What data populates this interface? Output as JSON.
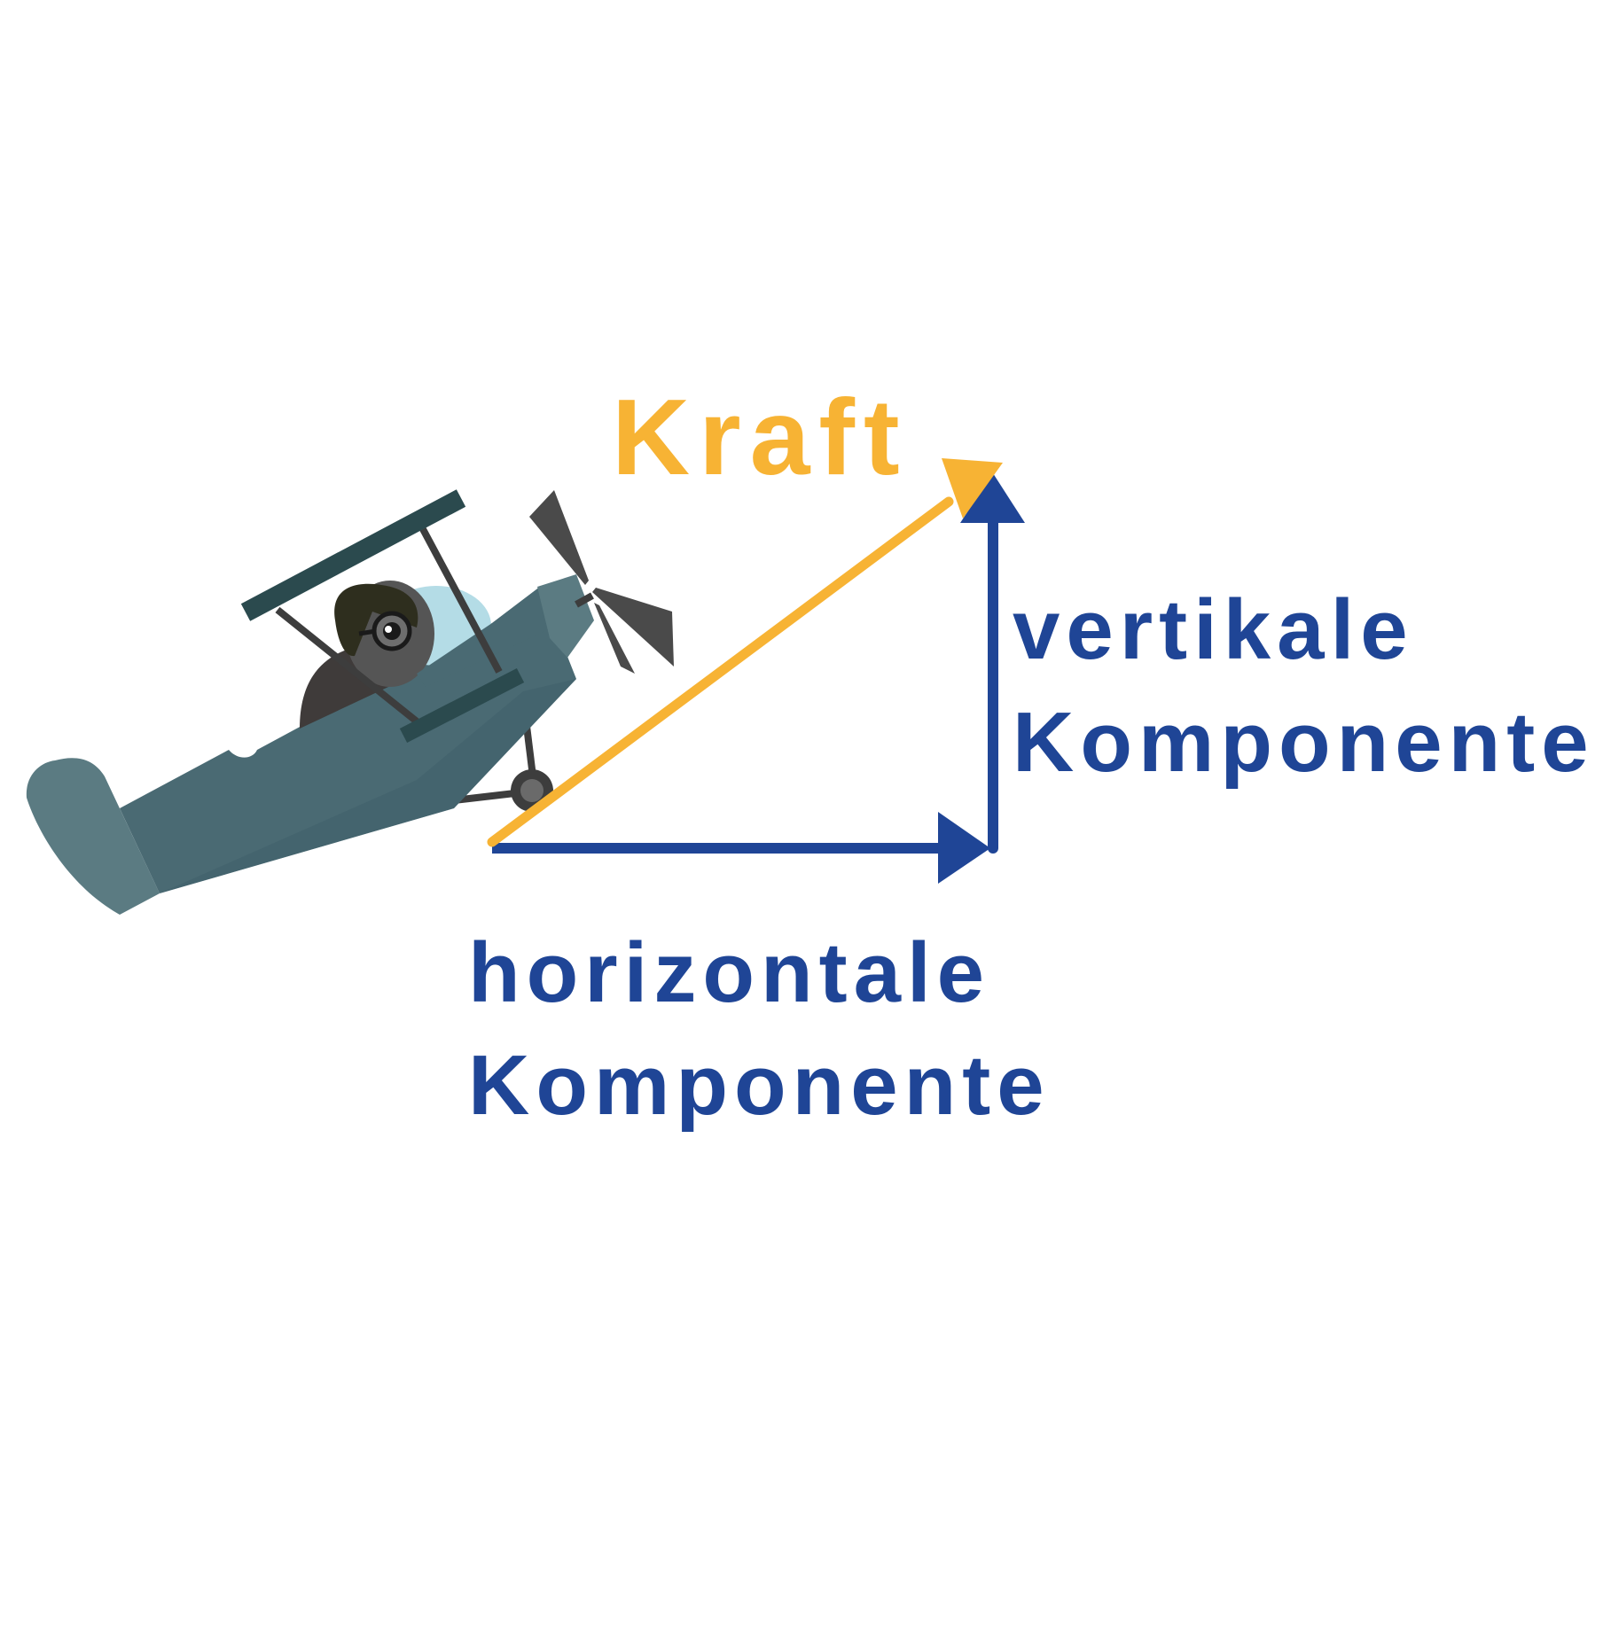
{
  "labels": {
    "force": "Kraft",
    "vertical_line1": "vertikale",
    "vertical_line2": "Komponente",
    "horizontal_line1": "horizontale",
    "horizontal_line2": "Komponente"
  },
  "colors": {
    "force": "#f7b334",
    "components": "#1f4596",
    "plane_body": "#4a6a73",
    "plane_light": "#5b7b82",
    "wing_dark": "#2b4a4e",
    "propeller": "#4a4a4a",
    "cockpit_glass": "#b4dce6",
    "pilot_helmet": "#2e2e1e",
    "strut": "#3d3d3d"
  },
  "icons": {
    "plane": "biplane-illustration",
    "pilot": "pilot-icon",
    "propeller": "propeller-icon"
  }
}
